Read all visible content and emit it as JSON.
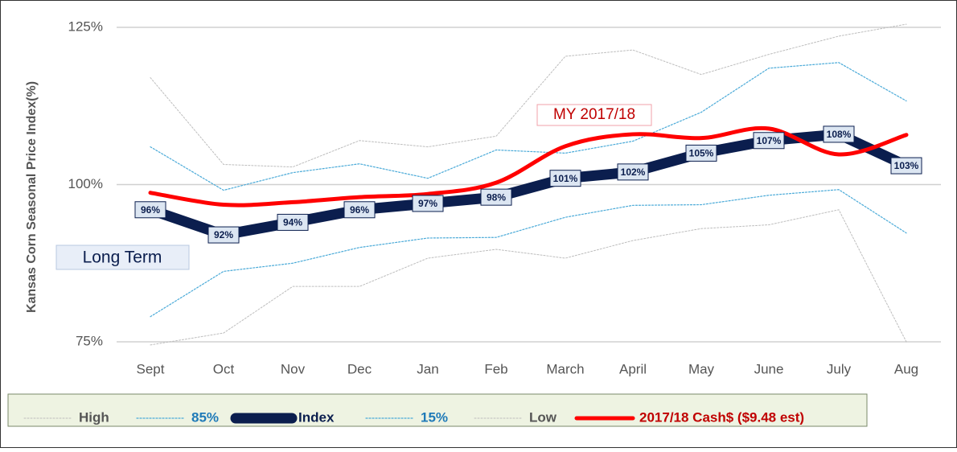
{
  "chart_data": {
    "type": "line",
    "ylabel": "Kansas Corn Seasonal Price Index(%)",
    "categories": [
      "Sept",
      "Oct",
      "Nov",
      "Dec",
      "Jan",
      "Feb",
      "March",
      "April",
      "May",
      "June",
      "July",
      "Aug"
    ],
    "ylim": [
      75,
      125
    ],
    "yticks": [
      {
        "value": 75,
        "label": "75%"
      },
      {
        "value": 100,
        "label": "100%"
      },
      {
        "value": 125,
        "label": "125%"
      }
    ],
    "grid": true,
    "series": [
      {
        "name": "High",
        "color": "#bdbdbd",
        "linestyle": "dotted",
        "values": [
          117,
          103.2,
          102.8,
          107,
          106,
          107.7,
          120.4,
          121.4,
          117.5,
          120.7,
          123.6,
          125.5
        ]
      },
      {
        "name": "85%",
        "color": "#4aaad8",
        "linestyle": "dotted",
        "values": [
          106,
          99.1,
          101.9,
          103.3,
          101,
          105.5,
          105,
          106.9,
          111.5,
          118.5,
          119.4,
          113.3
        ]
      },
      {
        "name": "Index",
        "color": "#0b1e4e",
        "linestyle": "solid",
        "values": [
          96,
          92,
          94,
          96,
          97,
          98,
          101,
          102,
          105,
          107,
          108,
          103
        ],
        "value_labels": [
          "96%",
          "92%",
          "94%",
          "96%",
          "97%",
          "98%",
          "101%",
          "102%",
          "105%",
          "107%",
          "108%",
          "103%"
        ]
      },
      {
        "name": "15%",
        "color": "#4aaad8",
        "linestyle": "dotted",
        "values": [
          79,
          86.2,
          87.5,
          90,
          91.5,
          91.6,
          94.8,
          96.7,
          96.8,
          98.3,
          99.2,
          92.3
        ]
      },
      {
        "name": "Low",
        "color": "#bdbdbd",
        "linestyle": "dotted",
        "values": [
          74.5,
          76.4,
          83.8,
          83.8,
          88.3,
          89.7,
          88.3,
          91.1,
          93,
          93.6,
          96,
          75
        ]
      },
      {
        "name": "2017/18 Cash$ ($9.48 est)",
        "color": "#ff0000",
        "linestyle": "solid",
        "values": [
          98.7,
          96.8,
          97.2,
          98,
          98.5,
          100.3,
          106.1,
          108,
          107.4,
          108.9,
          104.8,
          107.9
        ]
      }
    ],
    "annotations": [
      "MY 2017/18",
      "Long Term"
    ]
  }
}
